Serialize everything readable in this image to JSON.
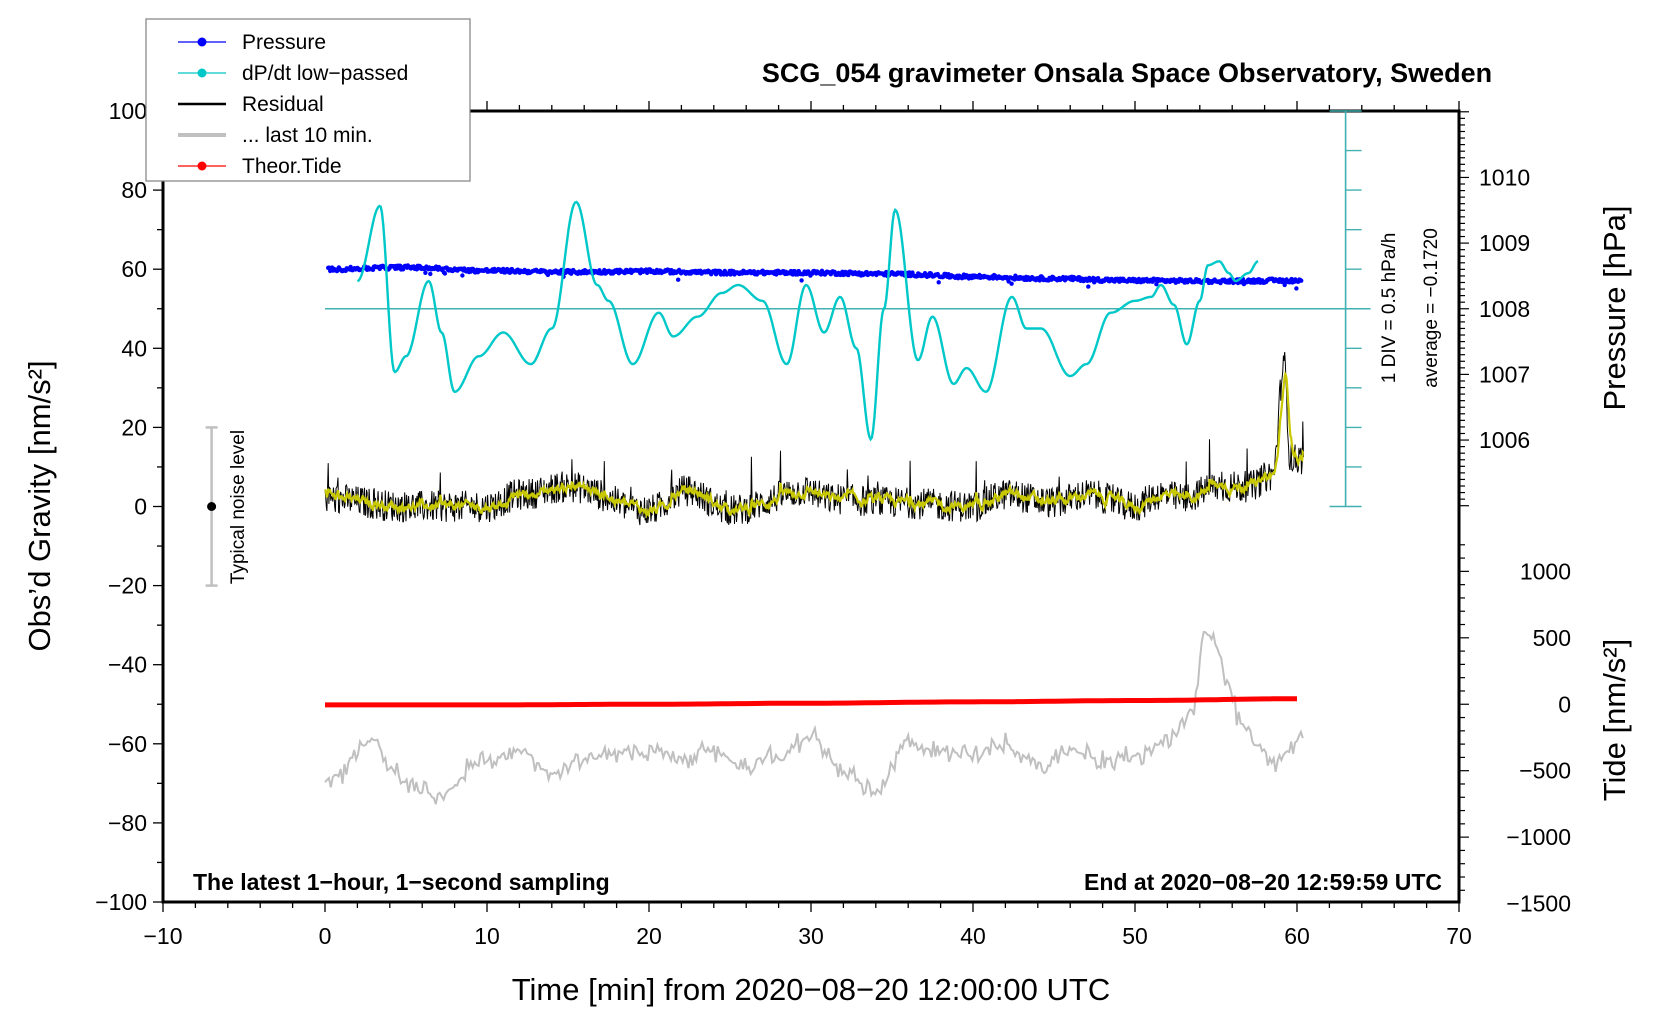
{
  "chart_data": {
    "type": "line",
    "title": "SCG_054 gravimeter Onsala Space Observatory, Sweden",
    "xlabel": "Time [min] from 2020−08−20 12:00:00 UTC",
    "ylabel_left": "Obs’d Gravity [nm/s²]",
    "ylabel_right_top": "Pressure [hPa]",
    "ylabel_right_bottom": "Tide [nm/s²]",
    "xlim": [
      -10,
      70
    ],
    "ylim_left": [
      -100,
      100
    ],
    "x_ticks": [
      -10,
      0,
      10,
      20,
      30,
      40,
      50,
      60,
      70
    ],
    "x_tick_labels": [
      "−10",
      "0",
      "10",
      "20",
      "30",
      "40",
      "50",
      "60",
      "70"
    ],
    "y_left_ticks": [
      100,
      80,
      60,
      40,
      20,
      0,
      -20,
      -40,
      -60,
      -80,
      -100
    ],
    "y_left_tick_labels": [
      "100",
      "80",
      "60",
      "40",
      "20",
      "0",
      "−20",
      "−40",
      "−60",
      "−80",
      "−100"
    ],
    "pressure_axis": {
      "ticks": [
        1010,
        1009,
        1008,
        1007,
        1006
      ],
      "tick_labels": [
        "1010",
        "1009",
        "1008",
        "1007",
        "1006"
      ],
      "ref_hpa": 1008,
      "ref_gravity": 50,
      "gravity_units_per_hpa": 16.6
    },
    "tide_axis": {
      "ticks": [
        1000,
        500,
        0,
        -500,
        -1000,
        -1500
      ],
      "tick_labels": [
        "1000",
        "500",
        "0",
        "−500",
        "−1000",
        "−1500"
      ],
      "ref_tide": 0,
      "ref_gravity": -50,
      "gravity_units_per_tide": 0.0336
    },
    "dpdt_scale": {
      "label_div": "1 DIV = 0.5 hPa/h",
      "label_avg": "average = −0.1720",
      "zero_gravity": 50,
      "hpa_per_hour_per_div": 0.5,
      "gravity_units_per_div": 10,
      "bar_range_gravity": [
        0,
        100
      ],
      "bar_x": 63
    },
    "legend": {
      "placement": "top-left",
      "entries": [
        {
          "label": "Pressure",
          "color": "#0000ff",
          "marker": "dot"
        },
        {
          "label": "dP/dt low−passed",
          "color": "#00c8c8",
          "marker": "dot"
        },
        {
          "label": "Residual",
          "color": "#000000",
          "marker": "line"
        },
        {
          "label": "... last 10 min.",
          "color": "#c0c0c0",
          "marker": "thickline"
        },
        {
          "label": "Theor.Tide",
          "color": "#ff0000",
          "marker": "dot"
        }
      ]
    },
    "annotations": {
      "bottom_left": "The latest 1−hour, 1−second sampling",
      "bottom_right": "End at 2020−08−20 12:59:59 UTC",
      "noise_label": "Typical noise level",
      "noise_bar": {
        "x": -7,
        "center": 0,
        "low": -20,
        "high": 20
      }
    },
    "series": [
      {
        "name": "Pressure",
        "unit": "hPa",
        "color": "#0000ff",
        "t": [
          0,
          5,
          10,
          15,
          20,
          25,
          30,
          35,
          40,
          45,
          50,
          55,
          60
        ],
        "values": [
          1008.6,
          1008.63,
          1008.58,
          1008.56,
          1008.57,
          1008.55,
          1008.55,
          1008.53,
          1008.49,
          1008.46,
          1008.43,
          1008.42,
          1008.43
        ],
        "scatter_hpa": 0.03
      },
      {
        "name": "dP/dt low-passed",
        "unit": "hPa/h",
        "color": "#00c8c8",
        "t": [
          2.0,
          3.4,
          4.3,
          5.0,
          6.4,
          7.2,
          8.0,
          9.5,
          11.0,
          12.7,
          14.0,
          15.5,
          16.8,
          17.5,
          19.0,
          20.6,
          21.5,
          23.0,
          24.5,
          25.5,
          27.0,
          28.5,
          29.7,
          30.8,
          31.8,
          32.8,
          33.7,
          34.5,
          35.2,
          36.6,
          37.5,
          38.8,
          39.6,
          40.8,
          42.4,
          43.3,
          44.2,
          46.0,
          47.0,
          48.5,
          50.0,
          51.0,
          51.6,
          52.4,
          53.2,
          54.0,
          54.5,
          55.2,
          55.8,
          56.2,
          57.0,
          57.6
        ],
        "values": [
          0.35,
          1.3,
          -0.8,
          -0.6,
          0.35,
          -0.3,
          -1.05,
          -0.6,
          -0.3,
          -0.7,
          -0.25,
          1.35,
          0.3,
          0.1,
          -0.7,
          -0.05,
          -0.35,
          -0.1,
          0.2,
          0.3,
          0.1,
          -0.7,
          0.3,
          -0.3,
          0.15,
          -0.5,
          -1.65,
          0.0,
          1.25,
          -0.65,
          -0.1,
          -0.95,
          -0.75,
          -1.05,
          0.15,
          -0.25,
          -0.25,
          -0.85,
          -0.7,
          -0.05,
          0.1,
          0.15,
          0.3,
          0.05,
          -0.45,
          0.1,
          0.55,
          0.6,
          0.45,
          0.35,
          0.45,
          0.6
        ]
      },
      {
        "name": "Residual",
        "unit": "nm/s²",
        "color": "#000000",
        "t": [
          0,
          5,
          10,
          12,
          15,
          20,
          22.3,
          25,
          29.8,
          31,
          35,
          40,
          42,
          45,
          47,
          50,
          51.5,
          53,
          55,
          57,
          58.5,
          59.2,
          59.6,
          60.4
        ],
        "values": [
          2,
          0,
          0,
          3,
          5,
          -1,
          4,
          -1,
          4,
          2,
          1,
          0,
          3,
          1,
          3,
          0,
          3,
          2,
          5,
          5,
          8,
          36,
          12,
          12
        ],
        "noise_amplitude": 4,
        "smoothed_color": "#c8c800"
      },
      {
        "name": "... last 10 min.",
        "unit": "nm/s²",
        "color": "#c0c0c0",
        "t": [
          0,
          1,
          2,
          3,
          4,
          5,
          6,
          7,
          8,
          9,
          10,
          12,
          14,
          16,
          18,
          20,
          22,
          24,
          26,
          28,
          30,
          32,
          34,
          36,
          38,
          40,
          42,
          44,
          46,
          48,
          50,
          52,
          53.5,
          54.3,
          55.0,
          55.8,
          56.5,
          57.5,
          58.5,
          59.5,
          60.4
        ],
        "values": [
          -70,
          -68,
          -62,
          -58,
          -66,
          -70,
          -72,
          -74,
          -70,
          -66,
          -64,
          -62,
          -68,
          -64,
          -62,
          -62,
          -64,
          -62,
          -66,
          -63,
          -58,
          -67,
          -72,
          -60,
          -62,
          -63,
          -60,
          -65,
          -62,
          -64,
          -63,
          -60,
          -52,
          -32,
          -35,
          -45,
          -55,
          -60,
          -65,
          -62,
          -57
        ],
        "noise_amplitude": 3
      },
      {
        "name": "Theor.Tide",
        "unit": "nm/s²",
        "color": "#ff0000",
        "t": [
          0,
          10,
          20,
          30,
          40,
          50,
          60.4
        ],
        "values": [
          -5,
          -5,
          0,
          8,
          18,
          28,
          42
        ]
      }
    ],
    "grid": false
  }
}
